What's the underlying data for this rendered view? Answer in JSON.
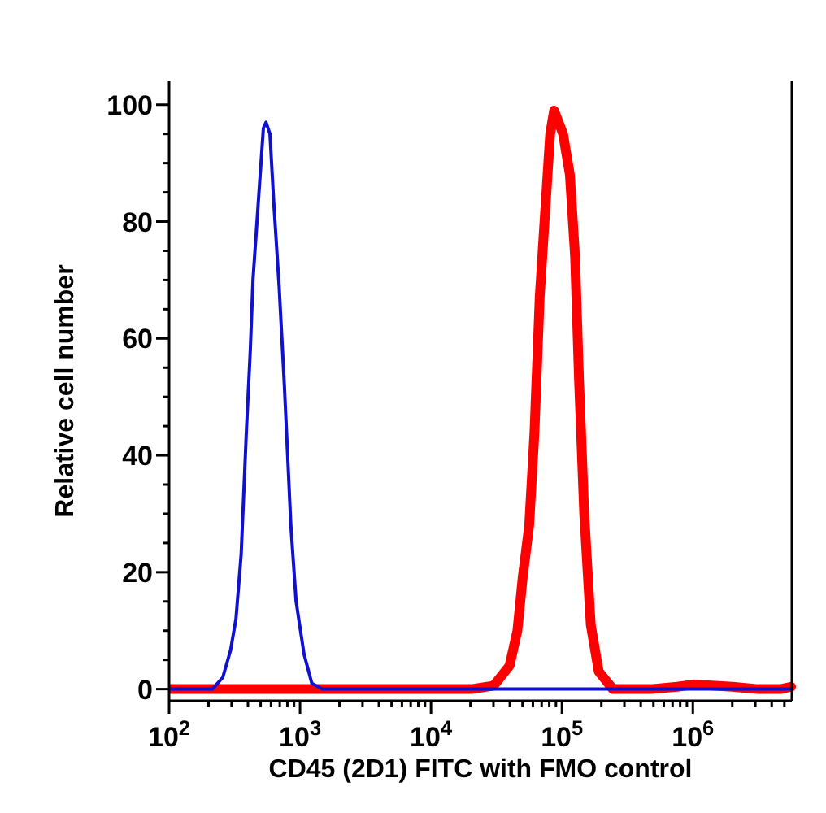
{
  "chart_data": {
    "type": "line",
    "xlabel": "CD45 (2D1) FITC with FMO control",
    "ylabel": "Relative cell number",
    "log": "x",
    "grid": false,
    "marker": "none",
    "line_style": "solid",
    "xlim": [
      100,
      5700000
    ],
    "ylim": [
      -2,
      104
    ],
    "xticks": [
      {
        "value": 100,
        "label": "10$^{2}$"
      },
      {
        "value": 200,
        "label": null
      },
      {
        "value": 300,
        "label": null
      },
      {
        "value": 400,
        "label": null
      },
      {
        "value": 500,
        "label": null
      },
      {
        "value": 600,
        "label": null
      },
      {
        "value": 700,
        "label": null
      },
      {
        "value": 800,
        "label": null
      },
      {
        "value": 900,
        "label": null
      },
      {
        "value": 1000,
        "label": "10$^{3}$"
      },
      {
        "value": 2000,
        "label": null
      },
      {
        "value": 3000,
        "label": null
      },
      {
        "value": 4000,
        "label": null
      },
      {
        "value": 5000,
        "label": null
      },
      {
        "value": 6000,
        "label": null
      },
      {
        "value": 7000,
        "label": null
      },
      {
        "value": 8000,
        "label": null
      },
      {
        "value": 9000,
        "label": null
      },
      {
        "value": 10000,
        "label": "10$^{4}$"
      },
      {
        "value": 20000,
        "label": null
      },
      {
        "value": 30000,
        "label": null
      },
      {
        "value": 40000,
        "label": null
      },
      {
        "value": 50000,
        "label": null
      },
      {
        "value": 60000,
        "label": null
      },
      {
        "value": 70000,
        "label": null
      },
      {
        "value": 80000,
        "label": null
      },
      {
        "value": 90000,
        "label": null
      },
      {
        "value": 100000,
        "label": "10$^{5}$"
      },
      {
        "value": 200000,
        "label": null
      },
      {
        "value": 300000,
        "label": null
      },
      {
        "value": 400000,
        "label": null
      },
      {
        "value": 500000,
        "label": null
      },
      {
        "value": 600000,
        "label": null
      },
      {
        "value": 700000,
        "label": null
      },
      {
        "value": 800000,
        "label": null
      },
      {
        "value": 900000,
        "label": null
      },
      {
        "value": 1000000,
        "label": "10$^{6}$"
      },
      {
        "value": 2000000,
        "label": null
      },
      {
        "value": 3000000,
        "label": null
      },
      {
        "value": 4000000,
        "label": null
      },
      {
        "value": 5000000,
        "label": null
      }
    ],
    "yticks": [
      0,
      {
        "value": 5,
        "label": null
      },
      {
        "value": 10,
        "label": null
      },
      {
        "value": 15,
        "label": null
      },
      20,
      {
        "value": 25,
        "label": null
      },
      {
        "value": 30,
        "label": null
      },
      {
        "value": 35,
        "label": null
      },
      40,
      {
        "value": 45,
        "label": null
      },
      {
        "value": 50,
        "label": null
      },
      {
        "value": 55,
        "label": null
      },
      60,
      {
        "value": 65,
        "label": null
      },
      {
        "value": 70,
        "label": null
      },
      {
        "value": 75,
        "label": null
      },
      80,
      {
        "value": 85,
        "label": null
      },
      {
        "value": 90,
        "label": null
      },
      {
        "value": 95,
        "label": null
      },
      100
    ],
    "series": [
      {
        "color": "#ff0000",
        "x": [
          100,
          20400,
          30200,
          39800,
          45700,
          50100,
          56200,
          61700,
          67600,
          74100,
          81300,
          87100,
          102000,
          115000,
          126000,
          135000,
          148000,
          166000,
          191000,
          245000,
          479000,
          759000,
          1020000,
          2000000,
          3160000,
          4680000,
          5620000
        ],
        "values": [
          0,
          0,
          0.6,
          4,
          10,
          19,
          28,
          44,
          67,
          81,
          95,
          99,
          95,
          88,
          74,
          53,
          30,
          11,
          3,
          0,
          0,
          0.4,
          0.8,
          0.4,
          0,
          0,
          0.4
        ]
      },
      {
        "color": "#1010d0",
        "x": [
          100,
          214,
          257,
          295,
          324,
          355,
          389,
          417,
          437,
          479,
          525,
          550,
          589,
          631,
          692,
          759,
          851,
          933,
          1072,
          1230,
          1479,
          5700000
        ],
        "values": [
          0,
          0,
          2,
          6.7,
          12,
          23,
          44,
          58,
          70,
          83,
          96,
          97,
          95,
          83,
          69,
          52,
          28,
          15,
          6,
          1,
          0,
          0
        ]
      }
    ]
  }
}
